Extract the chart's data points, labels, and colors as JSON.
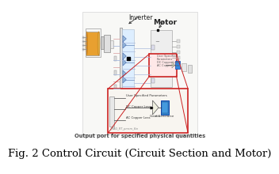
{
  "title": "Fig. 2 Control Circuit (Circuit Section and Motor)",
  "title_fontsize": 9.5,
  "bg_color": "#ffffff",
  "caption_color": "#000000",
  "output_port_label": "Output port for specified physical quantities",
  "output_port_color": "#444444",
  "output_port_fontsize": 4.8,
  "inverter_label": "Inverter",
  "motor_label": "Motor",
  "label_fontsize": 5.5,
  "label_color": "#222222",
  "zoom_box_color": "#cc2222",
  "zoom_inner_text1": "User Specified Parameters",
  "zoom_inner_text2": "DC Copper Loss",
  "zoom_inner_text3": "AC Copper Loss",
  "zoom_inner_bottom": "JMAG_RT_pmsm_6in",
  "zoom_gain_label": "Gain 1",
  "zoom_scope_label": "electricforce",
  "diag_bg": "#f8f8f6",
  "wire_blue": "#aabbdd",
  "wire_red": "#ddaaaa",
  "wire_dark": "#888888"
}
